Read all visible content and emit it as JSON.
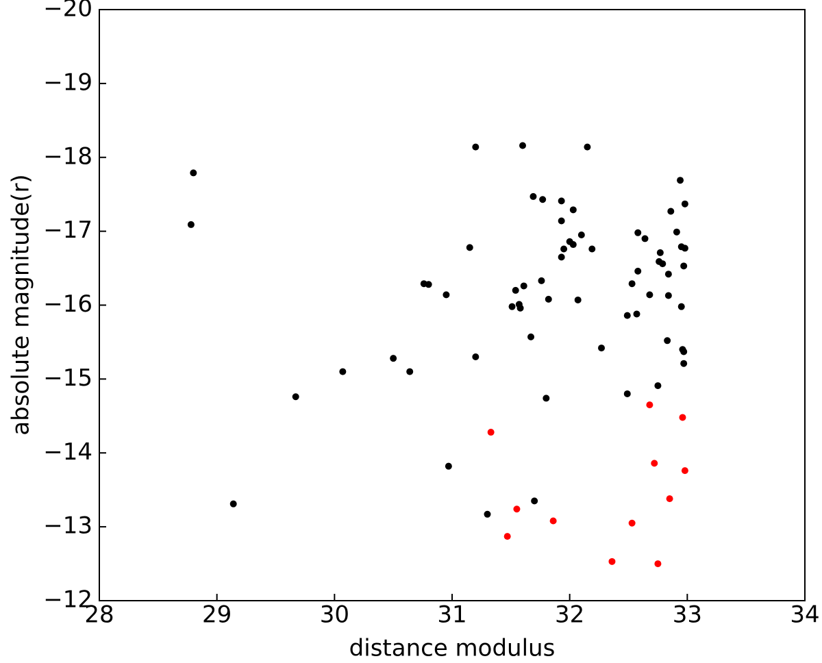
{
  "chart_data": {
    "type": "scatter",
    "xlabel": "distance modulus",
    "ylabel": "absolute magnitude(r)",
    "xlim": [
      28,
      34
    ],
    "ylim": [
      -12,
      -20
    ],
    "xticks": [
      28,
      29,
      30,
      31,
      32,
      33,
      34
    ],
    "yticks": [
      {
        "value": -12,
        "label": "−12"
      },
      {
        "value": -13,
        "label": "−13"
      },
      {
        "value": -14,
        "label": "−14"
      },
      {
        "value": -15,
        "label": "−15"
      },
      {
        "value": -16,
        "label": "−16"
      },
      {
        "value": -17,
        "label": "−17"
      },
      {
        "value": -18,
        "label": "−18"
      },
      {
        "value": -19,
        "label": "−19"
      },
      {
        "value": -20,
        "label": "−20"
      }
    ],
    "grid": false,
    "series": [
      {
        "color": "#000000",
        "x": [
          28.8,
          28.78,
          29.14,
          29.67,
          30.07,
          30.5,
          30.64,
          30.76,
          30.8,
          30.95,
          30.97,
          31.15,
          31.2,
          31.2,
          31.3,
          31.51,
          31.54,
          31.57,
          31.58,
          31.61,
          31.6,
          31.67,
          31.69,
          31.7,
          31.76,
          31.77,
          31.8,
          31.82,
          31.93,
          31.93,
          31.95,
          31.93,
          32.0,
          32.03,
          32.03,
          32.07,
          32.1,
          32.15,
          32.19,
          32.27,
          32.49,
          32.49,
          32.53,
          32.57,
          32.58,
          32.58,
          32.64,
          32.68,
          32.75,
          32.76,
          32.77,
          32.79,
          32.83,
          32.84,
          32.84,
          32.86,
          32.91,
          32.94,
          32.95,
          32.95,
          32.97,
          32.96,
          32.97,
          32.98,
          32.98,
          32.97
        ],
        "values": [
          -17.79,
          -17.09,
          -13.31,
          -14.76,
          -15.1,
          -15.28,
          -15.1,
          -16.29,
          -16.28,
          -16.14,
          -13.82,
          -16.78,
          -18.14,
          -15.3,
          -13.17,
          -15.98,
          -16.2,
          -16.01,
          -15.96,
          -16.26,
          -18.16,
          -15.57,
          -17.47,
          -13.35,
          -16.33,
          -17.43,
          -14.74,
          -16.08,
          -17.41,
          -17.14,
          -16.76,
          -16.65,
          -16.86,
          -17.29,
          -16.82,
          -16.07,
          -16.95,
          -18.14,
          -16.76,
          -15.42,
          -15.86,
          -14.8,
          -16.29,
          -15.88,
          -16.46,
          -16.98,
          -16.9,
          -16.14,
          -14.91,
          -16.59,
          -16.71,
          -16.56,
          -15.52,
          -16.13,
          -16.42,
          -17.27,
          -16.99,
          -17.69,
          -15.98,
          -16.79,
          -16.53,
          -15.4,
          -15.37,
          -17.37,
          -16.77,
          -15.21
        ]
      },
      {
        "color": "#ff0000",
        "x": [
          31.33,
          31.55,
          31.47,
          31.86,
          32.36,
          32.53,
          32.68,
          32.72,
          32.75,
          32.85,
          32.96,
          32.98
        ],
        "values": [
          -14.28,
          -13.24,
          -12.87,
          -13.08,
          -12.53,
          -13.05,
          -14.65,
          -13.86,
          -12.5,
          -13.38,
          -14.48,
          -13.76
        ]
      }
    ]
  }
}
